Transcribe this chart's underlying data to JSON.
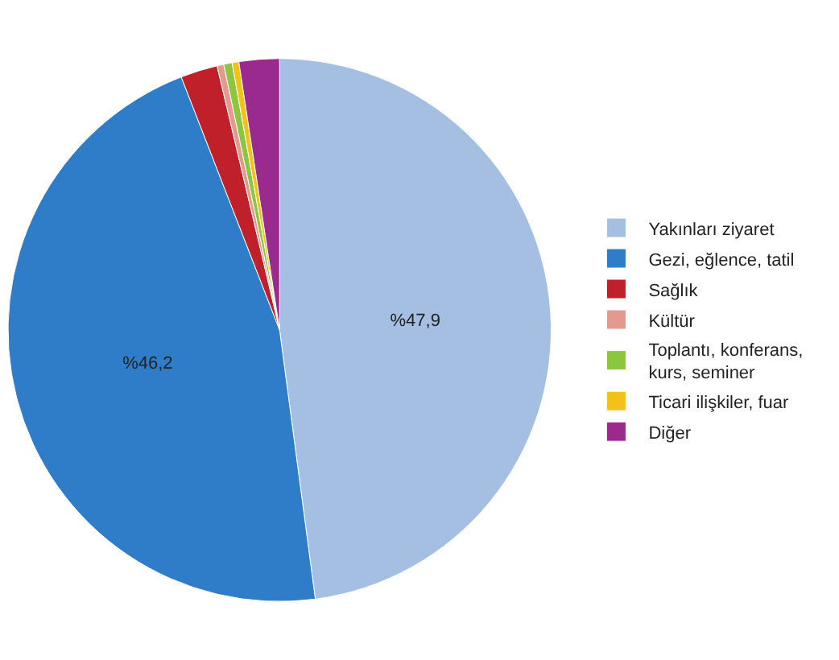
{
  "chart_data": {
    "type": "pie",
    "categories": [
      "Yakınları ziyaret",
      "Gezi, eğlence, tatil",
      "Sağlık",
      "Kültür",
      "Toplantı, konferans, kurs, seminer",
      "Ticari ilişkiler, fuar",
      "Diğer"
    ],
    "values": [
      47.9,
      46.2,
      2.2,
      0.4,
      0.5,
      0.4,
      2.4
    ],
    "value_labels": [
      "%47,9",
      "%46,2",
      null,
      null,
      null,
      null,
      null
    ],
    "colors": [
      "#a4bfe2",
      "#2f7cc8",
      "#c0202a",
      "#e29a8e",
      "#8cc63e",
      "#f2c21a",
      "#9a2a8e"
    ],
    "legend": "right"
  }
}
